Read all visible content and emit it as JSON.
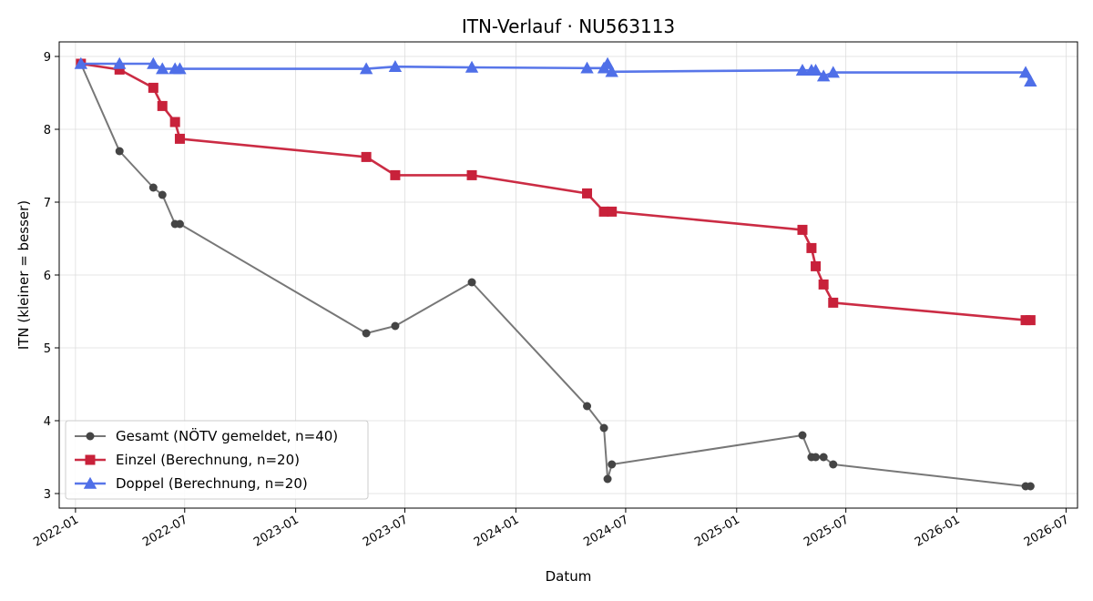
{
  "chart_data": {
    "type": "line",
    "title": "ITN-Verlauf · NU563113",
    "xlabel": "Datum",
    "ylabel": "ITN  (kleiner = besser)",
    "ylim": [
      2.8,
      9.2
    ],
    "xlim": [
      "2021-12-05",
      "2026-07-20"
    ],
    "x_ticks": [
      "2022-01",
      "2022-07",
      "2023-01",
      "2023-07",
      "2024-01",
      "2024-07",
      "2025-01",
      "2025-07",
      "2026-01",
      "2026-07"
    ],
    "y_ticks": [
      3,
      4,
      5,
      6,
      7,
      8,
      9
    ],
    "grid": true,
    "legend_position": "lower-left",
    "series": [
      {
        "name": "Gesamt (NÖTV gemeldet, n=40)",
        "color": "#555555",
        "marker": "circle",
        "points": [
          {
            "x": "2022-01-10",
            "y": 8.9
          },
          {
            "x": "2022-03-15",
            "y": 7.7
          },
          {
            "x": "2022-05-10",
            "y": 7.2
          },
          {
            "x": "2022-05-25",
            "y": 7.1
          },
          {
            "x": "2022-06-15",
            "y": 6.7
          },
          {
            "x": "2022-06-23",
            "y": 6.7
          },
          {
            "x": "2023-04-28",
            "y": 5.2
          },
          {
            "x": "2023-06-15",
            "y": 5.3
          },
          {
            "x": "2023-10-20",
            "y": 5.9
          },
          {
            "x": "2024-04-28",
            "y": 4.2
          },
          {
            "x": "2024-05-26",
            "y": 3.9
          },
          {
            "x": "2024-06-01",
            "y": 3.2
          },
          {
            "x": "2024-06-08",
            "y": 3.4
          },
          {
            "x": "2025-04-20",
            "y": 3.8
          },
          {
            "x": "2025-05-05",
            "y": 3.5
          },
          {
            "x": "2025-05-12",
            "y": 3.5
          },
          {
            "x": "2025-05-25",
            "y": 3.5
          },
          {
            "x": "2025-06-10",
            "y": 3.4
          },
          {
            "x": "2026-04-25",
            "y": 3.1
          },
          {
            "x": "2026-05-03",
            "y": 3.1
          }
        ]
      },
      {
        "name": "Einzel (Berechnung, n=20)",
        "color": "#c8213a",
        "marker": "square",
        "points": [
          {
            "x": "2022-01-10",
            "y": 8.9
          },
          {
            "x": "2022-03-15",
            "y": 8.82
          },
          {
            "x": "2022-05-10",
            "y": 8.57
          },
          {
            "x": "2022-05-25",
            "y": 8.32
          },
          {
            "x": "2022-06-15",
            "y": 8.1
          },
          {
            "x": "2022-06-23",
            "y": 7.87
          },
          {
            "x": "2023-04-28",
            "y": 7.62
          },
          {
            "x": "2023-06-15",
            "y": 7.37
          },
          {
            "x": "2023-10-20",
            "y": 7.37
          },
          {
            "x": "2024-04-28",
            "y": 7.12
          },
          {
            "x": "2024-05-26",
            "y": 6.87
          },
          {
            "x": "2024-06-08",
            "y": 6.87
          },
          {
            "x": "2025-04-20",
            "y": 6.62
          },
          {
            "x": "2025-05-05",
            "y": 6.37
          },
          {
            "x": "2025-05-12",
            "y": 6.12
          },
          {
            "x": "2025-05-25",
            "y": 5.87
          },
          {
            "x": "2025-06-10",
            "y": 5.62
          },
          {
            "x": "2026-04-25",
            "y": 5.38
          },
          {
            "x": "2026-05-03",
            "y": 5.38
          }
        ]
      },
      {
        "name": "Doppel (Berechnung, n=20)",
        "color": "#4f6fe8",
        "marker": "triangle",
        "points": [
          {
            "x": "2022-01-10",
            "y": 8.9
          },
          {
            "x": "2022-03-15",
            "y": 8.9
          },
          {
            "x": "2022-05-10",
            "y": 8.9
          },
          {
            "x": "2022-05-25",
            "y": 8.83
          },
          {
            "x": "2022-06-15",
            "y": 8.83
          },
          {
            "x": "2022-06-23",
            "y": 8.83
          },
          {
            "x": "2023-04-28",
            "y": 8.83
          },
          {
            "x": "2023-06-15",
            "y": 8.86
          },
          {
            "x": "2023-10-20",
            "y": 8.85
          },
          {
            "x": "2024-04-28",
            "y": 8.84
          },
          {
            "x": "2024-05-26",
            "y": 8.84
          },
          {
            "x": "2024-06-01",
            "y": 8.9
          },
          {
            "x": "2024-06-08",
            "y": 8.79
          },
          {
            "x": "2025-04-20",
            "y": 8.81
          },
          {
            "x": "2025-05-05",
            "y": 8.81
          },
          {
            "x": "2025-05-12",
            "y": 8.81
          },
          {
            "x": "2025-05-25",
            "y": 8.73
          },
          {
            "x": "2025-06-10",
            "y": 8.78
          },
          {
            "x": "2026-04-25",
            "y": 8.78
          },
          {
            "x": "2026-05-03",
            "y": 8.66
          }
        ]
      }
    ]
  }
}
